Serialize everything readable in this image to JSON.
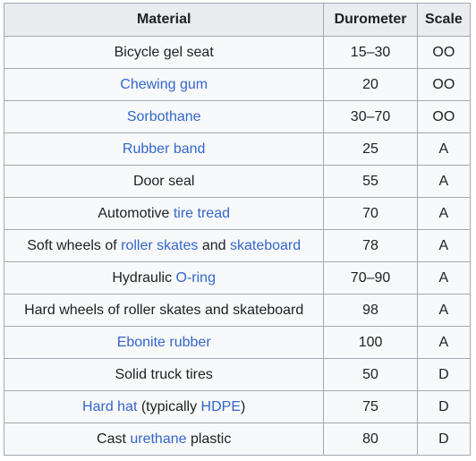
{
  "table": {
    "headers": [
      "Material",
      "Durometer",
      "Scale"
    ],
    "rows": [
      {
        "parts": [
          {
            "t": "Bicycle gel seat",
            "link": false
          }
        ],
        "durometer": "15–30",
        "scale": "OO"
      },
      {
        "parts": [
          {
            "t": "Chewing gum",
            "link": true
          }
        ],
        "durometer": "20",
        "scale": "OO"
      },
      {
        "parts": [
          {
            "t": "Sorbothane",
            "link": true
          }
        ],
        "durometer": "30–70",
        "scale": "OO"
      },
      {
        "parts": [
          {
            "t": "Rubber band",
            "link": true
          }
        ],
        "durometer": "25",
        "scale": "A"
      },
      {
        "parts": [
          {
            "t": "Door seal",
            "link": false
          }
        ],
        "durometer": "55",
        "scale": "A"
      },
      {
        "parts": [
          {
            "t": "Automotive ",
            "link": false
          },
          {
            "t": "tire tread",
            "link": true
          }
        ],
        "durometer": "70",
        "scale": "A"
      },
      {
        "parts": [
          {
            "t": "Soft wheels of ",
            "link": false
          },
          {
            "t": "roller skates",
            "link": true
          },
          {
            "t": " and ",
            "link": false
          },
          {
            "t": "skateboard",
            "link": true
          }
        ],
        "durometer": "78",
        "scale": "A"
      },
      {
        "parts": [
          {
            "t": "Hydraulic ",
            "link": false
          },
          {
            "t": "O-ring",
            "link": true
          }
        ],
        "durometer": "70–90",
        "scale": "A"
      },
      {
        "parts": [
          {
            "t": "Hard wheels of roller skates and skateboard",
            "link": false
          }
        ],
        "durometer": "98",
        "scale": "A"
      },
      {
        "parts": [
          {
            "t": "Ebonite rubber",
            "link": true
          }
        ],
        "durometer": "100",
        "scale": "A"
      },
      {
        "parts": [
          {
            "t": "Solid truck tires",
            "link": false
          }
        ],
        "durometer": "50",
        "scale": "D"
      },
      {
        "parts": [
          {
            "t": "Hard hat",
            "link": true
          },
          {
            "t": " (typically ",
            "link": false
          },
          {
            "t": "HDPE",
            "link": true
          },
          {
            "t": ")",
            "link": false
          }
        ],
        "durometer": "75",
        "scale": "D"
      },
      {
        "parts": [
          {
            "t": "Cast ",
            "link": false
          },
          {
            "t": "urethane",
            "link": true
          },
          {
            "t": " plastic",
            "link": false
          }
        ],
        "durometer": "80",
        "scale": "D"
      }
    ]
  },
  "colors": {
    "link": "#3366cc",
    "text": "#202122",
    "header_bg": "#eaecf0",
    "cell_bg": "#f8f9fa",
    "border": "#a2a9b1"
  }
}
